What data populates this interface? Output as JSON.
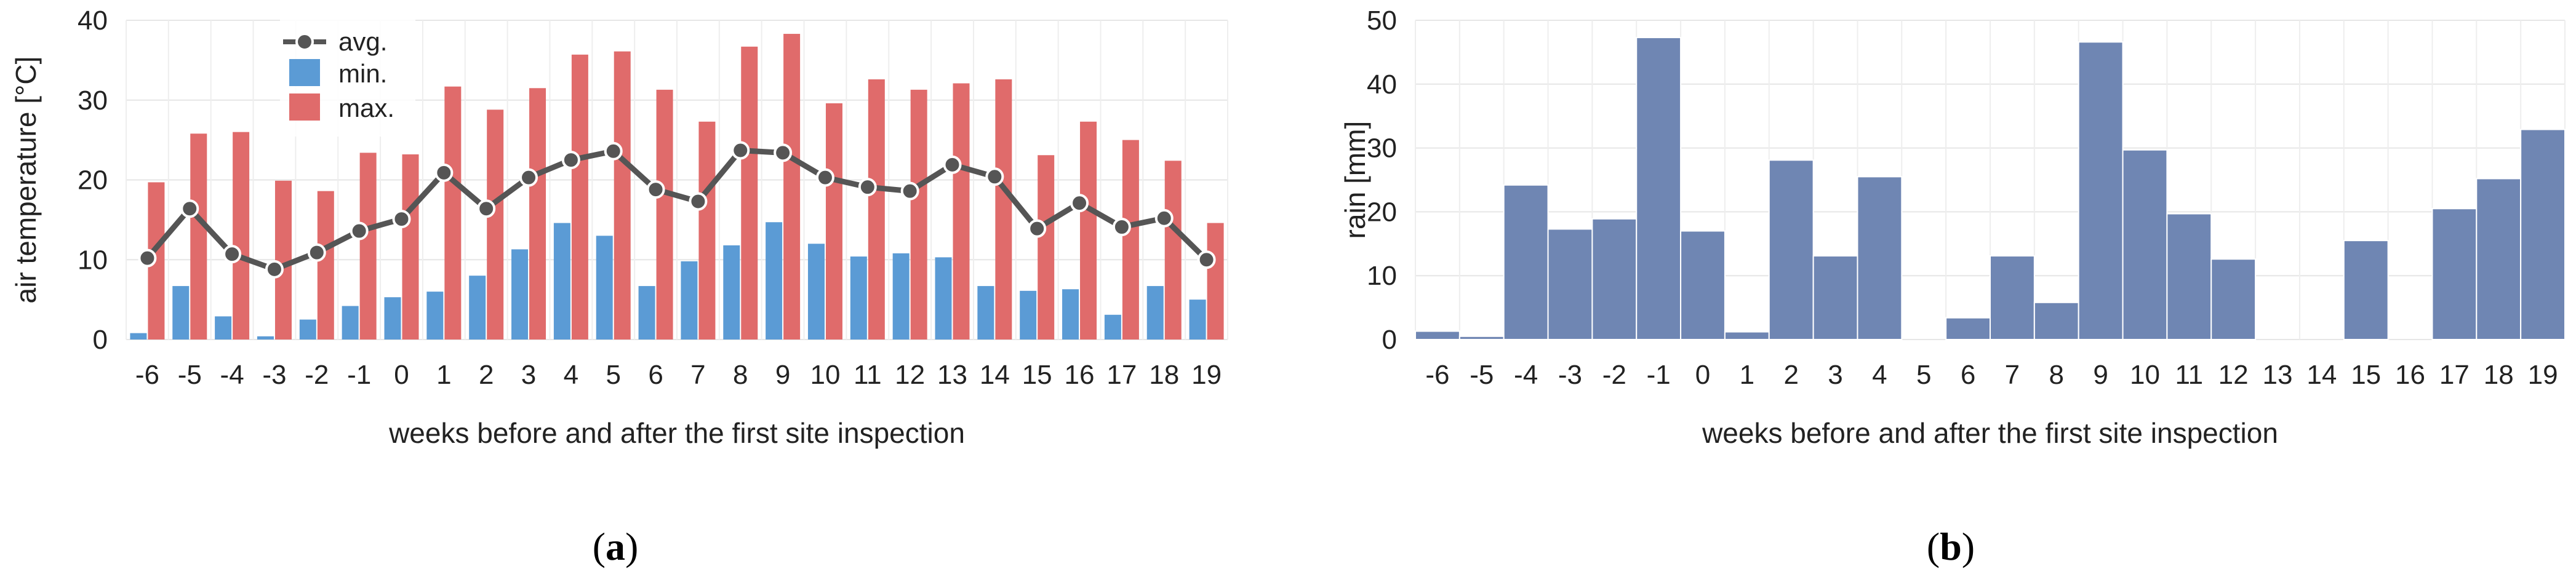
{
  "panels": [
    {
      "caption_open": "(",
      "caption_letter": "a",
      "caption_close": ")",
      "colors": {
        "min": "#5B9BD5",
        "max": "#E06B6B",
        "avg": "#555555"
      },
      "chart_data": {
        "type": "bar",
        "categories": [
          "-6",
          "-5",
          "-4",
          "-3",
          "-2",
          "-1",
          "0",
          "1",
          "2",
          "3",
          "4",
          "5",
          "6",
          "7",
          "8",
          "9",
          "10",
          "11",
          "12",
          "13",
          "14",
          "15",
          "16",
          "17",
          "18",
          "19"
        ],
        "series": [
          {
            "name": "min.",
            "type": "bar",
            "values": [
              0.8,
              6.7,
              2.9,
              0.4,
              2.5,
              4.2,
              5.3,
              6.0,
              8.0,
              11.3,
              14.6,
              13.0,
              6.7,
              9.8,
              11.8,
              14.7,
              12.0,
              10.4,
              10.8,
              10.3,
              6.7,
              6.1,
              6.3,
              3.1,
              6.7,
              5.0
            ]
          },
          {
            "name": "max.",
            "type": "bar",
            "values": [
              19.7,
              25.8,
              26.0,
              19.9,
              18.6,
              23.4,
              23.2,
              31.7,
              28.8,
              31.5,
              35.7,
              36.1,
              31.3,
              27.3,
              36.7,
              38.3,
              29.6,
              32.6,
              31.3,
              32.1,
              32.6,
              23.1,
              27.3,
              25.0,
              22.4,
              14.6
            ]
          },
          {
            "name": "avg.",
            "type": "line",
            "values": [
              10.2,
              16.4,
              10.7,
              8.8,
              10.9,
              13.6,
              15.1,
              20.9,
              16.4,
              20.3,
              22.5,
              23.6,
              18.8,
              17.3,
              23.7,
              23.4,
              20.3,
              19.1,
              18.6,
              21.9,
              20.4,
              13.9,
              17.1,
              14.1,
              15.2,
              10.0
            ]
          }
        ],
        "xlabel": "weeks before and after the first site inspection",
        "ylabel": "air temperature [°C]",
        "ylim": [
          0,
          40
        ],
        "yticks": [
          0,
          10,
          20,
          30,
          40
        ],
        "grid": true,
        "legend_position": "top-left"
      }
    },
    {
      "caption_open": "(",
      "caption_letter": "b",
      "caption_close": ")",
      "colors": {
        "bar": "#6F86B3"
      },
      "chart_data": {
        "type": "bar",
        "categories": [
          "-6",
          "-5",
          "-4",
          "-3",
          "-2",
          "-1",
          "0",
          "1",
          "2",
          "3",
          "4",
          "5",
          "6",
          "7",
          "8",
          "9",
          "10",
          "11",
          "12",
          "13",
          "14",
          "15",
          "16",
          "17",
          "18",
          "19"
        ],
        "series": [
          {
            "values": [
              1.3,
              0.5,
              24.2,
              17.3,
              18.9,
              47.3,
              17.0,
              1.2,
              28.1,
              13.1,
              25.5,
              0,
              3.4,
              13.1,
              5.8,
              46.6,
              29.7,
              19.7,
              12.6,
              0,
              0,
              15.5,
              0,
              20.5,
              25.2,
              32.9
            ]
          }
        ],
        "xlabel": "weeks before and after the first site inspection",
        "ylabel": "rain [mm]",
        "ylim": [
          0,
          50
        ],
        "yticks": [
          0,
          10,
          20,
          30,
          40,
          50
        ],
        "grid": true
      }
    }
  ]
}
